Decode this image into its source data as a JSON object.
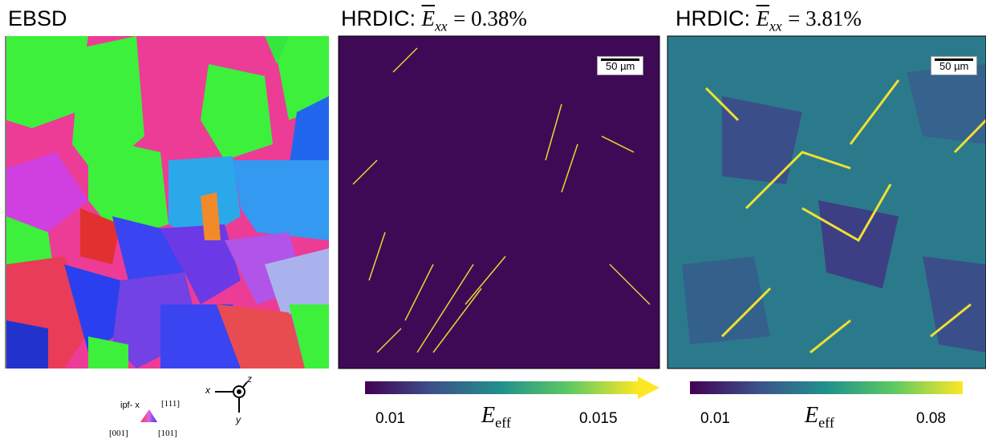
{
  "panels": [
    {
      "title": "EBSD"
    },
    {
      "title": {
        "label": "HRDIC:",
        "symbol": "E",
        "subscript": "xx",
        "value": "= 0.38%"
      },
      "scale_bar": "50 µm",
      "colorbar": {
        "min": "0.01",
        "symbol": "E",
        "subscript": "eff",
        "max": "0.015"
      }
    },
    {
      "title": {
        "label": "HRDIC:",
        "symbol": "E",
        "subscript": "xx",
        "value": "= 3.81%"
      },
      "scale_bar": "50 µm",
      "colorbar": {
        "min": "0.01",
        "symbol": "E",
        "subscript": "eff",
        "max": "0.08"
      }
    }
  ],
  "ipf_legend": {
    "label": "ipf- x",
    "corner_top": "[111]",
    "corner_left": "[001]",
    "corner_right": "[101]"
  },
  "axes_triad": {
    "x": "x",
    "y": "y",
    "z": "z"
  }
}
